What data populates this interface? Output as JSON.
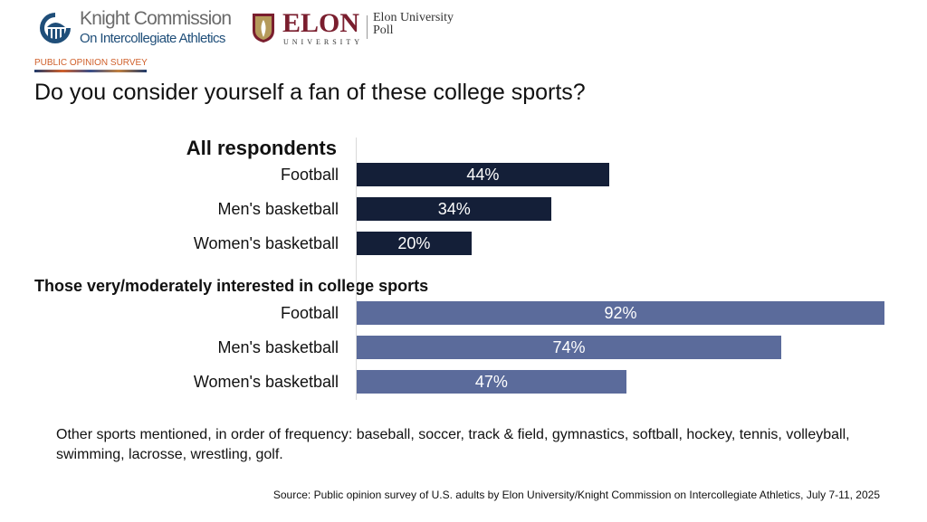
{
  "header": {
    "kc_line1": "Knight Commission",
    "kc_line2": "On Intercollegiate Athletics",
    "elon_name": "ELON",
    "elon_sub": "UNIVERSITY",
    "elon_poll": "Elon University Poll",
    "survey_label": "PUBLIC OPINION SURVEY"
  },
  "colors": {
    "dark": "#141f38",
    "light": "#5b6b9b"
  },
  "chart_data": {
    "type": "bar",
    "orientation": "horizontal",
    "title": "Do you consider yourself a fan of these college sports?",
    "groups": [
      {
        "name": "All respondents",
        "categories": [
          "Football",
          "Men's basketball",
          "Women's basketball"
        ],
        "values": [
          44,
          34,
          20
        ],
        "labels": [
          "44%",
          "34%",
          "20%"
        ]
      },
      {
        "name": "Those very/moderately interested in college sports",
        "categories": [
          "Football",
          "Men's basketball",
          "Women's basketball"
        ],
        "values": [
          92,
          74,
          47
        ],
        "labels": [
          "92%",
          "74%",
          "47%"
        ]
      }
    ],
    "xlim": [
      0,
      92
    ]
  },
  "note": "Other sports mentioned, in order of frequency: baseball, soccer, track & field, gymnastics, softball, hockey, tennis, volleyball, swimming, lacrosse, wrestling, golf.",
  "source": "Source: Public opinion survey of U.S. adults by Elon University/Knight Commission on Intercollegiate Athletics, July 7-11, 2025"
}
